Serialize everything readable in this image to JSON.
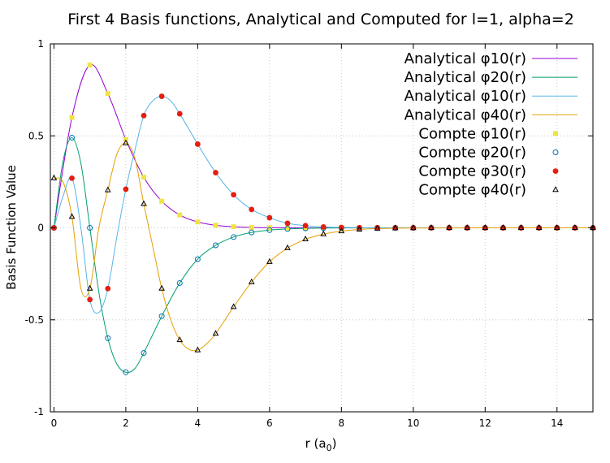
{
  "chart_data": {
    "type": "line",
    "title": "First 4 Basis functions, Analytical and Computed for l=1, alpha=2",
    "xlabel": "r (a",
    "xlabel_sub": "0",
    "xlabel_close": ")",
    "ylabel": "Basis Function Value",
    "xlim": [
      -0.1,
      15
    ],
    "ylim": [
      -1,
      1
    ],
    "xticks": [
      0,
      2,
      4,
      6,
      8,
      10,
      12,
      14
    ],
    "yticks": [
      -1,
      -0.5,
      0,
      0.5,
      1
    ],
    "xtick_labels": [
      "0",
      "2",
      "4",
      "6",
      "8",
      "10",
      "12",
      "14"
    ],
    "ytick_labels": [
      "-1",
      "-0.5",
      "0",
      "0.5",
      "1"
    ],
    "grid": true,
    "legend_position": "top-right",
    "series": [
      {
        "name": "Analytical φ10(r)",
        "kind": "line",
        "color": "#9400d3",
        "x": [
          0,
          0.5,
          1.0,
          1.5,
          2.0,
          2.5,
          3.0,
          3.5,
          4.0,
          4.5,
          5.0,
          5.5,
          6.0,
          7.0,
          8.0,
          10.0,
          12.0,
          15.0
        ],
        "y": [
          0,
          0.6,
          0.885,
          0.73,
          0.48,
          0.275,
          0.145,
          0.07,
          0.032,
          0.014,
          0.006,
          0.002,
          0.001,
          0.0002,
          0,
          0,
          0,
          0
        ]
      },
      {
        "name": "Analytical φ20(r)",
        "kind": "line",
        "color": "#009e73",
        "x": [
          0,
          0.25,
          0.5,
          0.75,
          1.0,
          1.25,
          1.5,
          1.75,
          2.0,
          2.25,
          2.5,
          3.0,
          3.5,
          4.0,
          4.5,
          5.0,
          5.5,
          6.0,
          6.5,
          7.0,
          7.5,
          8.0,
          8.5,
          9.0,
          10.0,
          12.0,
          15.0
        ],
        "y": [
          0,
          0.36,
          0.49,
          0.35,
          0.0,
          -0.35,
          -0.6,
          -0.74,
          -0.785,
          -0.765,
          -0.68,
          -0.48,
          -0.3,
          -0.17,
          -0.095,
          -0.05,
          -0.025,
          -0.012,
          -0.006,
          -0.0028,
          -0.0013,
          -0.0006,
          -0.0003,
          -0.0001,
          0,
          0,
          0
        ]
      },
      {
        "name": "Analytical φ10(r)",
        "kind": "line",
        "color": "#56b4e9",
        "x": [
          0,
          0.25,
          0.5,
          0.75,
          1.0,
          1.25,
          1.5,
          1.75,
          2.0,
          2.25,
          2.5,
          2.75,
          3.0,
          3.25,
          3.5,
          4.0,
          4.5,
          5.0,
          5.5,
          6.0,
          6.5,
          7.0,
          7.5,
          8.0,
          8.5,
          9.0,
          10.0,
          12.0,
          15.0
        ],
        "y": [
          0,
          0.17,
          0.27,
          0.0,
          -0.39,
          -0.46,
          -0.33,
          -0.05,
          0.21,
          0.42,
          0.61,
          0.69,
          0.715,
          0.69,
          0.62,
          0.455,
          0.3,
          0.18,
          0.1,
          0.055,
          0.025,
          0.012,
          0.005,
          0.002,
          0.0008,
          0.0003,
          0,
          0,
          0
        ]
      },
      {
        "name": "Analytical φ40(r)",
        "kind": "line",
        "color": "#e69f00",
        "x": [
          0,
          0.25,
          0.5,
          0.75,
          1.0,
          1.25,
          1.5,
          1.75,
          2.0,
          2.25,
          2.5,
          2.75,
          3.0,
          3.25,
          3.5,
          3.75,
          4.0,
          4.25,
          4.5,
          5.0,
          5.5,
          6.0,
          6.5,
          7.0,
          7.5,
          8.0,
          8.5,
          9.0,
          10.0,
          12.0,
          15.0
        ],
        "y": [
          0.27,
          0.25,
          0.06,
          -0.33,
          -0.33,
          0.0,
          0.205,
          0.4,
          0.46,
          0.38,
          0.13,
          -0.1,
          -0.33,
          -0.5,
          -0.61,
          -0.66,
          -0.665,
          -0.63,
          -0.575,
          -0.43,
          -0.295,
          -0.185,
          -0.11,
          -0.062,
          -0.034,
          -0.018,
          -0.009,
          -0.004,
          -0.001,
          0,
          0
        ]
      },
      {
        "name": "Compte φ10(r)",
        "kind": "points",
        "marker": "square",
        "color": "#f0e442",
        "x": [
          0,
          0.5,
          1.0,
          1.5,
          2.0,
          2.5,
          3.0,
          3.5,
          4.0,
          4.5,
          5.0,
          5.5,
          6.0,
          6.5,
          7.0,
          7.5,
          8.0,
          8.5,
          9.0,
          9.5,
          10.0,
          10.5,
          11.0,
          11.5,
          12.0,
          12.5,
          13.0,
          13.5,
          14.0,
          14.5,
          15.0
        ],
        "y": [
          0,
          0.6,
          0.885,
          0.73,
          0.48,
          0.275,
          0.145,
          0.07,
          0.032,
          0.014,
          0.006,
          0.002,
          0.001,
          0,
          0,
          0,
          0,
          0,
          0,
          0,
          0,
          0,
          0,
          0,
          0,
          0,
          0,
          0,
          0,
          0,
          0
        ]
      },
      {
        "name": "Compte φ20(r)",
        "kind": "points",
        "marker": "circle",
        "color": "#0072b2",
        "x": [
          0,
          0.5,
          1.0,
          1.5,
          2.0,
          2.5,
          3.0,
          3.5,
          4.0,
          4.5,
          5.0,
          5.5,
          6.0,
          6.5,
          7.0,
          7.5,
          8.0,
          8.5,
          9.0,
          9.5,
          10.0,
          10.5,
          11.0,
          11.5,
          12.0,
          12.5,
          13.0,
          13.5,
          14.0,
          14.5,
          15.0
        ],
        "y": [
          0,
          0.49,
          0.0,
          -0.6,
          -0.785,
          -0.68,
          -0.48,
          -0.3,
          -0.17,
          -0.095,
          -0.05,
          -0.025,
          -0.012,
          -0.006,
          -0.0028,
          -0.0013,
          -0.0006,
          -0.0003,
          -0.0001,
          0,
          0,
          0,
          0,
          0,
          0,
          0,
          0,
          0,
          0,
          0,
          0
        ]
      },
      {
        "name": "Compte φ30(r)",
        "kind": "points",
        "marker": "filled-circle",
        "color": "#e51e10",
        "x": [
          0,
          0.5,
          1.0,
          1.5,
          2.0,
          2.5,
          3.0,
          3.5,
          4.0,
          4.5,
          5.0,
          5.5,
          6.0,
          6.5,
          7.0,
          7.5,
          8.0,
          8.5,
          9.0,
          9.5,
          10.0,
          10.5,
          11.0,
          11.5,
          12.0,
          12.5,
          13.0,
          13.5,
          14.0,
          14.5,
          15.0
        ],
        "y": [
          0,
          0.27,
          -0.39,
          -0.33,
          0.21,
          0.61,
          0.715,
          0.62,
          0.455,
          0.3,
          0.18,
          0.1,
          0.055,
          0.025,
          0.012,
          0.005,
          0.002,
          0.0008,
          0.0003,
          0,
          0,
          0,
          0,
          0,
          0,
          0,
          0,
          0,
          0,
          0,
          0
        ]
      },
      {
        "name": "Compte φ40(r)",
        "kind": "points",
        "marker": "triangle",
        "color": "#000000",
        "x": [
          0,
          0.5,
          1.0,
          1.5,
          2.0,
          2.5,
          3.0,
          3.5,
          4.0,
          4.5,
          5.0,
          5.5,
          6.0,
          6.5,
          7.0,
          7.5,
          8.0,
          8.5,
          9.0,
          9.5,
          10.0,
          10.5,
          11.0,
          11.5,
          12.0,
          12.5,
          13.0,
          13.5,
          14.0,
          14.5,
          15.0
        ],
        "y": [
          0.27,
          0.06,
          -0.33,
          0.205,
          0.46,
          0.13,
          -0.33,
          -0.61,
          -0.665,
          -0.575,
          -0.43,
          -0.295,
          -0.185,
          -0.11,
          -0.062,
          -0.034,
          -0.018,
          -0.009,
          -0.004,
          -0.002,
          -0.001,
          0,
          0,
          0,
          0,
          0,
          0,
          0,
          0,
          0,
          0
        ]
      }
    ]
  }
}
